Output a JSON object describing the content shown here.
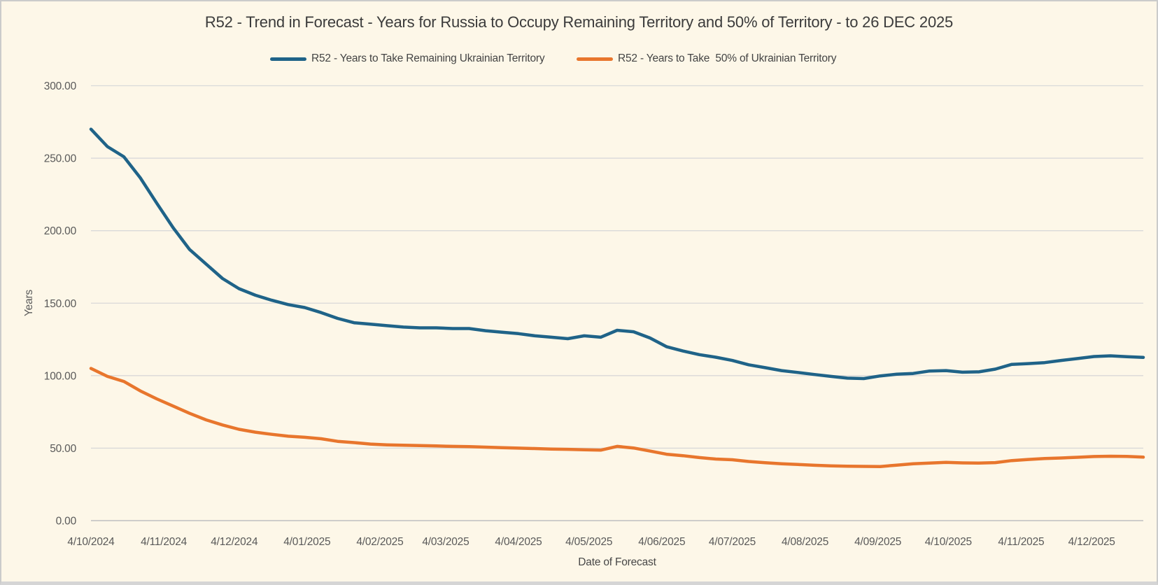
{
  "chart": {
    "background_color": "#FDF7E8",
    "gridline_color": "#D9D9D9",
    "axis_line_color": "#BFBFBF",
    "tick_text_color": "#595959",
    "title_text_color": "#3B3B3B"
  },
  "chart_data": {
    "type": "line",
    "title": "R52 - Trend in Forecast - Years for Russia to Occupy Remaining Territory and 50% of Territory - to 26 DEC 2025",
    "xlabel": "Date of Forecast",
    "ylabel": "Years",
    "ylim": [
      0,
      300
    ],
    "y_tick_step": 50,
    "y_tick_labels": [
      "0.00",
      "50.00",
      "100.00",
      "150.00",
      "200.00",
      "250.00",
      "300.00"
    ],
    "x_tick_labels": [
      "4/10/2024",
      "4/11/2024",
      "4/12/2024",
      "4/01/2025",
      "4/02/2025",
      "4/03/2025",
      "4/04/2025",
      "4/05/2025",
      "4/06/2025",
      "4/07/2025",
      "4/08/2025",
      "4/09/2025",
      "4/10/2025",
      "4/11/2025",
      "4/12/2025"
    ],
    "x_tick_days": [
      0,
      31,
      61,
      92,
      123,
      151,
      182,
      212,
      243,
      273,
      304,
      335,
      365,
      396,
      426
    ],
    "x_total_days": 448,
    "point_interval_days": 7,
    "grid": "horizontal",
    "legend_position": "top",
    "series": [
      {
        "name": "R52 - Years to Take Remaining Ukrainian Territory",
        "color": "#1F6388",
        "values": [
          270,
          258,
          251,
          236.5,
          219,
          202,
          187,
          177,
          167,
          160,
          155.5,
          152,
          149,
          147,
          143.5,
          139.5,
          136.5,
          135.5,
          134.5,
          133.5,
          133,
          133,
          132.5,
          132.5,
          131,
          130,
          129,
          127.5,
          126.5,
          125.5,
          127.5,
          126.5,
          131.3,
          130.3,
          126,
          120,
          117,
          114.5,
          112.7,
          110.5,
          107.5,
          105.5,
          103.5,
          102.2,
          100.8,
          99.5,
          98.3,
          98,
          99.8,
          101,
          101.5,
          103.2,
          103.5,
          102.4,
          102.6,
          104.5,
          107.8,
          108.3,
          109,
          110.5,
          111.8,
          113.2,
          113.7,
          113.1,
          112.6
        ]
      },
      {
        "name": "R52 - Years to Take  50% of Ukrainian Territory",
        "color": "#E8762D",
        "values": [
          105,
          99.5,
          96,
          89.5,
          84,
          79,
          74,
          69.5,
          66,
          63,
          61,
          59.5,
          58.2,
          57.5,
          56.5,
          54.7,
          53.8,
          52.8,
          52.3,
          52,
          51.8,
          51.5,
          51.2,
          51,
          50.7,
          50.3,
          50,
          49.7,
          49.4,
          49.2,
          48.9,
          48.6,
          51.2,
          50.1,
          48,
          45.8,
          44.8,
          43.5,
          42.5,
          42,
          40.8,
          39.9,
          39.2,
          38.7,
          38.2,
          37.8,
          37.5,
          37.4,
          37.3,
          38.3,
          39.2,
          39.7,
          40.2,
          39.8,
          39.7,
          40,
          41.4,
          42.2,
          42.8,
          43.2,
          43.7,
          44.2,
          44.4,
          44.3,
          43.8
        ]
      }
    ]
  }
}
